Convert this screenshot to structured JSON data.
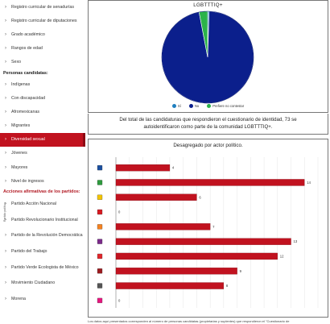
{
  "sidebar": {
    "top_items": [
      {
        "label": "Registro curricular de senadurías"
      },
      {
        "label": "Registro curricular de diputaciones"
      },
      {
        "label": "Grado académico"
      },
      {
        "label": "Rangos de edad"
      },
      {
        "label": "Sexo"
      }
    ],
    "candidatas_heading": "Personas candidatas:",
    "candidatas_items": [
      {
        "label": "Indígenas"
      },
      {
        "label": "Con discapacidad"
      },
      {
        "label": "Afromexicanas"
      },
      {
        "label": "Migrantes"
      },
      {
        "label": "Diversidad sexual"
      },
      {
        "label": "Jóvenes"
      },
      {
        "label": "Mayores"
      },
      {
        "label": "Nivel de ingresos"
      }
    ],
    "acciones_heading": "Acciones afirmativas de los partidos:",
    "party_items": [
      {
        "label": "Partido Acción Nacional"
      },
      {
        "label": "Partido Revolucionario Institucional"
      },
      {
        "label": "Partido de la Revolución Democrática"
      },
      {
        "label": "Partido del Trabajo"
      },
      {
        "label": "Partido Verde Ecologista de México"
      },
      {
        "label": "Movimiento Ciudadano"
      },
      {
        "label": "Morena"
      }
    ]
  },
  "pie_panel": {
    "title": "LGBTTTIQ+",
    "legend": [
      {
        "label": "Sí",
        "color": "#1f7fbf"
      },
      {
        "label": "No",
        "color": "#0b1f8c"
      },
      {
        "label": "Prefiere no contestar",
        "color": "#2bb34a"
      }
    ]
  },
  "caption": {
    "line1": "Del total de las candidaturas que respondieron el cuestionario de identidad, 73 se",
    "line2": "autoidentificaron como parte de la comunidad LGBTTTIQ+."
  },
  "bar_panel": {
    "title": "Desagregado por actor político.",
    "y_axis_title": "Partido político"
  },
  "bottom_note": "Los datos aquí presentados corresponden al número de personas candidatas (propietarias y suplentes) que respondieron el \"Cuestionario de",
  "chart_data": [
    {
      "type": "pie",
      "title": "LGBTTTIQ+",
      "categories": [
        "Sí",
        "No",
        "Prefiere no contestar"
      ],
      "values": [
        0.5,
        96.5,
        3.0
      ],
      "colors": [
        "#1f7fbf",
        "#0b1f8c",
        "#2bb34a"
      ],
      "legend": "bottom"
    },
    {
      "type": "bar",
      "orientation": "horizontal",
      "title": "Desagregado por actor político.",
      "ylabel": "Partido político",
      "categories": [
        "PAN",
        "PVEM",
        "PRD",
        "PT",
        "MC",
        "PES",
        "PRI",
        "MORENA",
        "RSP",
        "FXM"
      ],
      "icon_colors": [
        "#1a4fa0",
        "#2e9b3e",
        "#f2c300",
        "#d71920",
        "#f58220",
        "#7b2a8a",
        "#e0262b",
        "#9c1b1f",
        "#555555",
        "#e6157e"
      ],
      "values": [
        4,
        14,
        6,
        0,
        7,
        13,
        12,
        9,
        8,
        0
      ],
      "xlim": [
        0,
        15
      ],
      "bar_color": "#c1121f",
      "grid": true
    }
  ]
}
